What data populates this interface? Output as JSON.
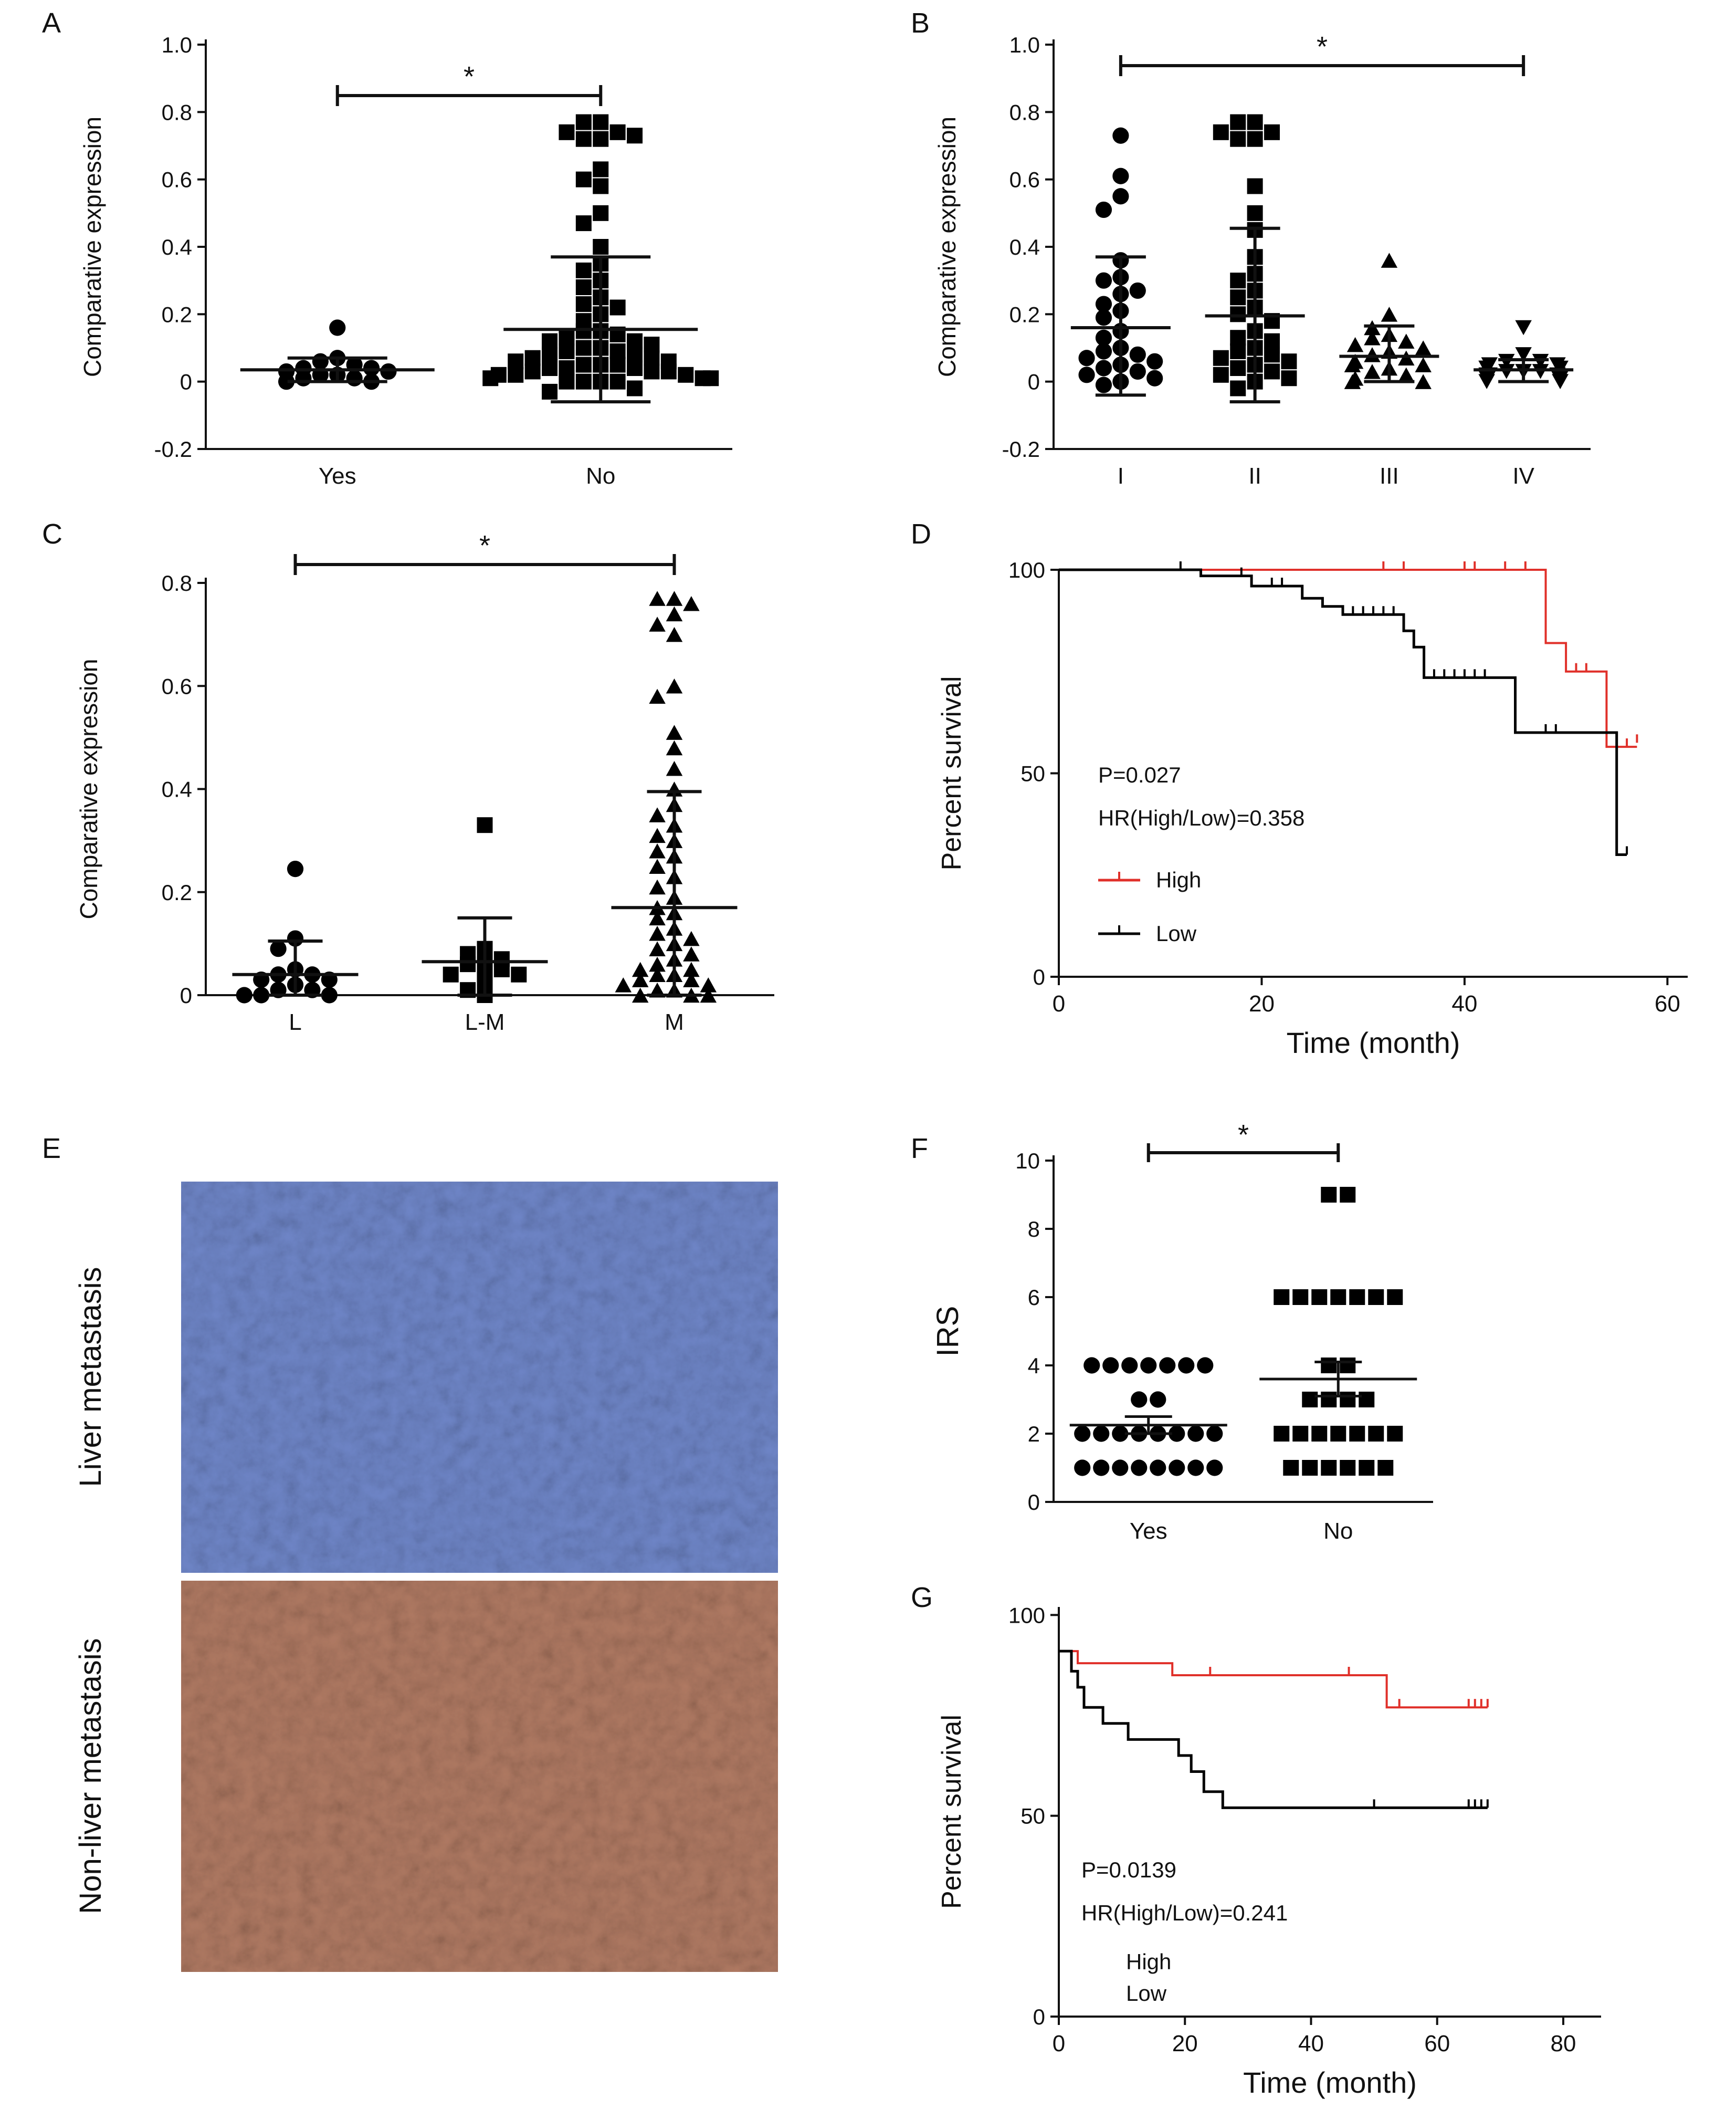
{
  "panel_labels": {
    "A": "A",
    "B": "B",
    "C": "C",
    "D": "D",
    "E": "E",
    "F": "F",
    "G": "G"
  },
  "histology": {
    "top_label": "Liver metastasis",
    "bottom_label": "Non-liver metastasis",
    "top_color": "#6f86c8",
    "bottom_color": "#b07a63"
  },
  "chart_data": [
    {
      "panel": "A",
      "type": "scatter",
      "ylabel": "Comparative expression",
      "ylim": [
        -0.2,
        1.0
      ],
      "yticks": [
        "-0.2",
        "0",
        "0.2",
        "0.4",
        "0.6",
        "0.8",
        "1.0"
      ],
      "categories": [
        "Yes",
        "No"
      ],
      "significance": {
        "from": "Yes",
        "to": "No",
        "label": "*"
      },
      "series": [
        {
          "category": "Yes",
          "marker": "circle",
          "mean": 0.035,
          "sd_upper": 0.07,
          "sd_lower": 0.0,
          "values": [
            0.16,
            0.07,
            0.06,
            0.05,
            0.04,
            0.04,
            0.03,
            0.03,
            0.02,
            0.02,
            0.01,
            0.01,
            0.0,
            0.0
          ]
        },
        {
          "category": "No",
          "marker": "square",
          "mean": 0.155,
          "sd_upper": 0.37,
          "sd_lower": -0.06,
          "values": [
            0.77,
            0.77,
            0.74,
            0.74,
            0.73,
            0.72,
            0.72,
            0.63,
            0.6,
            0.58,
            0.5,
            0.47,
            0.4,
            0.35,
            0.33,
            0.3,
            0.28,
            0.25,
            0.23,
            0.22,
            0.2,
            0.18,
            0.15,
            0.15,
            0.14,
            0.13,
            0.12,
            0.12,
            0.11,
            0.1,
            0.1,
            0.09,
            0.09,
            0.08,
            0.08,
            0.07,
            0.07,
            0.06,
            0.06,
            0.05,
            0.05,
            0.05,
            0.04,
            0.04,
            0.04,
            0.03,
            0.03,
            0.03,
            0.02,
            0.02,
            0.02,
            0.01,
            0.01,
            0.01,
            0.0,
            0.0,
            0.0,
            0.0,
            -0.02,
            -0.03
          ]
        }
      ]
    },
    {
      "panel": "B",
      "type": "scatter",
      "ylabel": "Comparative expression",
      "ylim": [
        -0.2,
        1.0
      ],
      "yticks": [
        "-0.2",
        "0",
        "0.2",
        "0.4",
        "0.6",
        "0.8",
        "1.0"
      ],
      "categories": [
        "I",
        "II",
        "III",
        "IV"
      ],
      "significance": {
        "from": "I",
        "to": "IV",
        "label": "*"
      },
      "series": [
        {
          "category": "I",
          "marker": "circle",
          "mean": 0.16,
          "sd_upper": 0.37,
          "sd_lower": -0.04,
          "values": [
            0.73,
            0.61,
            0.55,
            0.51,
            0.36,
            0.31,
            0.3,
            0.27,
            0.26,
            0.23,
            0.21,
            0.19,
            0.15,
            0.13,
            0.1,
            0.09,
            0.08,
            0.07,
            0.06,
            0.05,
            0.04,
            0.03,
            0.02,
            0.01,
            0.0,
            -0.01
          ]
        },
        {
          "category": "II",
          "marker": "square",
          "mean": 0.195,
          "sd_upper": 0.455,
          "sd_lower": -0.06,
          "values": [
            0.77,
            0.77,
            0.74,
            0.74,
            0.72,
            0.72,
            0.58,
            0.5,
            0.45,
            0.37,
            0.32,
            0.3,
            0.27,
            0.25,
            0.22,
            0.2,
            0.18,
            0.15,
            0.13,
            0.12,
            0.1,
            0.09,
            0.08,
            0.07,
            0.06,
            0.05,
            0.04,
            0.03,
            0.02,
            0.01,
            0.0,
            -0.02
          ]
        },
        {
          "category": "III",
          "marker": "triangle-up",
          "mean": 0.075,
          "sd_upper": 0.165,
          "sd_lower": 0.0,
          "values": [
            0.36,
            0.2,
            0.16,
            0.14,
            0.13,
            0.12,
            0.11,
            0.1,
            0.09,
            0.08,
            0.07,
            0.06,
            0.05,
            0.05,
            0.04,
            0.03,
            0.02,
            0.01,
            0.0,
            0.0
          ]
        },
        {
          "category": "IV",
          "marker": "triangle-down",
          "mean": 0.035,
          "sd_upper": 0.065,
          "sd_lower": 0.0,
          "values": [
            0.16,
            0.08,
            0.06,
            0.06,
            0.05,
            0.05,
            0.04,
            0.04,
            0.04,
            0.03,
            0.03,
            0.03,
            0.02,
            0.02,
            0.02,
            0.01,
            0.01,
            0.0,
            0.0,
            0.0
          ]
        }
      ]
    },
    {
      "panel": "C",
      "type": "scatter",
      "ylabel": "Comparative expression",
      "ylim": [
        0,
        0.8
      ],
      "yticks": [
        "0",
        "0.2",
        "0.4",
        "0.6",
        "0.8"
      ],
      "categories": [
        "L",
        "L-M",
        "M"
      ],
      "significance": {
        "from": "L",
        "to": "M",
        "label": "*"
      },
      "series": [
        {
          "category": "L",
          "marker": "circle",
          "mean": 0.04,
          "sd_upper": 0.105,
          "sd_lower": 0.0,
          "values": [
            0.245,
            0.11,
            0.09,
            0.05,
            0.04,
            0.04,
            0.03,
            0.03,
            0.02,
            0.01,
            0.01,
            0.0,
            0.0,
            0.0
          ]
        },
        {
          "category": "L-M",
          "marker": "square",
          "mean": 0.065,
          "sd_upper": 0.15,
          "sd_lower": 0.0,
          "values": [
            0.33,
            0.09,
            0.08,
            0.07,
            0.06,
            0.06,
            0.05,
            0.04,
            0.04,
            0.03,
            0.01,
            0.0
          ]
        },
        {
          "category": "M",
          "marker": "triangle-up",
          "mean": 0.17,
          "sd_upper": 0.395,
          "sd_lower": 0.0,
          "values": [
            0.77,
            0.77,
            0.76,
            0.74,
            0.72,
            0.7,
            0.6,
            0.58,
            0.51,
            0.48,
            0.44,
            0.4,
            0.37,
            0.35,
            0.33,
            0.31,
            0.3,
            0.28,
            0.27,
            0.25,
            0.23,
            0.21,
            0.19,
            0.17,
            0.16,
            0.15,
            0.13,
            0.12,
            0.11,
            0.1,
            0.09,
            0.08,
            0.07,
            0.06,
            0.05,
            0.05,
            0.04,
            0.04,
            0.03,
            0.03,
            0.02,
            0.02,
            0.01,
            0.01,
            0.0,
            0.0,
            0.0
          ]
        }
      ]
    },
    {
      "panel": "D",
      "type": "line",
      "ylabel": "Percent survival",
      "xlabel": "Time (month)",
      "xlim": [
        0,
        62
      ],
      "ylim": [
        0,
        100
      ],
      "xticks": [
        "0",
        "20",
        "40",
        "60"
      ],
      "yticks": [
        "0",
        "50",
        "100"
      ],
      "annotation_p": "P=0.027",
      "annotation_hr": "HR(High/Low)=0.358",
      "series": [
        {
          "name": "High",
          "color": "#e0302a",
          "steps": [
            [
              0,
              100
            ],
            [
              48,
              100
            ],
            [
              48,
              82
            ],
            [
              50,
              82
            ],
            [
              50,
              75
            ],
            [
              54,
              75
            ],
            [
              54,
              56.5
            ],
            [
              57,
              56.5
            ]
          ],
          "censor": [
            [
              32,
              100
            ],
            [
              34,
              100
            ],
            [
              40,
              100
            ],
            [
              41,
              100
            ],
            [
              44,
              100
            ],
            [
              46,
              100
            ],
            [
              51,
              75
            ],
            [
              52,
              75
            ],
            [
              56,
              56.5
            ],
            [
              57,
              57.5
            ]
          ]
        },
        {
          "name": "Low",
          "color": "#000000",
          "steps": [
            [
              0,
              100
            ],
            [
              14,
              100
            ],
            [
              14,
              98.5
            ],
            [
              19,
              98.5
            ],
            [
              19,
              96
            ],
            [
              24,
              96
            ],
            [
              24,
              93
            ],
            [
              26,
              93
            ],
            [
              26,
              91
            ],
            [
              28,
              91
            ],
            [
              28,
              89
            ],
            [
              34,
              89
            ],
            [
              34,
              85
            ],
            [
              35,
              85
            ],
            [
              35,
              81
            ],
            [
              36,
              81
            ],
            [
              36,
              73.5
            ],
            [
              45,
              73.5
            ],
            [
              45,
              60
            ],
            [
              55,
              60
            ],
            [
              55,
              30
            ],
            [
              56,
              30
            ]
          ],
          "censor": [
            [
              12,
              100
            ],
            [
              18,
              98.5
            ],
            [
              21,
              96
            ],
            [
              22,
              96
            ],
            [
              29,
              89
            ],
            [
              30,
              89
            ],
            [
              31,
              89
            ],
            [
              32,
              89
            ],
            [
              33,
              89
            ],
            [
              37,
              73.5
            ],
            [
              38,
              73.5
            ],
            [
              39,
              73.5
            ],
            [
              40,
              73.5
            ],
            [
              41,
              73.5
            ],
            [
              42,
              73.5
            ],
            [
              48,
              60
            ],
            [
              49,
              60
            ],
            [
              56,
              30
            ]
          ]
        }
      ]
    },
    {
      "panel": "F",
      "type": "scatter",
      "ylabel": "IRS",
      "ylim": [
        0,
        10
      ],
      "yticks": [
        "0",
        "2",
        "4",
        "6",
        "8",
        "10"
      ],
      "categories": [
        "Yes",
        "No"
      ],
      "significance": {
        "from": "Yes",
        "to": "No",
        "label": "*"
      },
      "series": [
        {
          "category": "Yes",
          "marker": "circle",
          "mean": 2.25,
          "sem_upper": 2.5,
          "sem_lower": 2.0,
          "rows": [
            {
              "value": 4,
              "count": 7
            },
            {
              "value": 3,
              "count": 2
            },
            {
              "value": 2,
              "count": 8
            },
            {
              "value": 1,
              "count": 8
            }
          ]
        },
        {
          "category": "No",
          "marker": "square",
          "mean": 3.6,
          "sem_upper": 4.1,
          "sem_lower": 3.1,
          "rows": [
            {
              "value": 9,
              "count": 2
            },
            {
              "value": 6,
              "count": 7
            },
            {
              "value": 4,
              "count": 2
            },
            {
              "value": 3,
              "count": 4
            },
            {
              "value": 2,
              "count": 7
            },
            {
              "value": 1,
              "count": 6
            }
          ]
        }
      ]
    },
    {
      "panel": "G",
      "type": "line",
      "ylabel": "Percent survival",
      "xlabel": "Time (month)",
      "xlim": [
        0,
        86
      ],
      "ylim": [
        0,
        102
      ],
      "xticks": [
        "0",
        "20",
        "40",
        "60",
        "80"
      ],
      "yticks": [
        "0",
        "50",
        "100"
      ],
      "annotation_p": "P=0.0139",
      "annotation_hr": "HR(High/Low)=0.241",
      "series": [
        {
          "name": "High",
          "color": "#e0302a",
          "steps": [
            [
              0,
              91
            ],
            [
              3,
              91
            ],
            [
              3,
              88
            ],
            [
              18,
              88
            ],
            [
              18,
              85
            ],
            [
              52,
              85
            ],
            [
              52,
              77
            ],
            [
              68,
              77
            ]
          ],
          "censor": [
            [
              24,
              85
            ],
            [
              46,
              85
            ],
            [
              54,
              77
            ],
            [
              65,
              77
            ],
            [
              66,
              77
            ],
            [
              67,
              77
            ],
            [
              68,
              77
            ]
          ]
        },
        {
          "name": "Low",
          "color": "#000000",
          "steps": [
            [
              0,
              91
            ],
            [
              2,
              91
            ],
            [
              2,
              86
            ],
            [
              3,
              86
            ],
            [
              3,
              82
            ],
            [
              4,
              82
            ],
            [
              4,
              77
            ],
            [
              7,
              77
            ],
            [
              7,
              73
            ],
            [
              11,
              73
            ],
            [
              11,
              69
            ],
            [
              19,
              69
            ],
            [
              19,
              65
            ],
            [
              21,
              65
            ],
            [
              21,
              61
            ],
            [
              23,
              61
            ],
            [
              23,
              56
            ],
            [
              26,
              56
            ],
            [
              26,
              52
            ],
            [
              68,
              52
            ]
          ],
          "censor": [
            [
              50,
              52
            ],
            [
              65,
              52
            ],
            [
              66,
              52
            ],
            [
              67,
              52
            ],
            [
              68,
              52
            ]
          ]
        }
      ]
    }
  ]
}
